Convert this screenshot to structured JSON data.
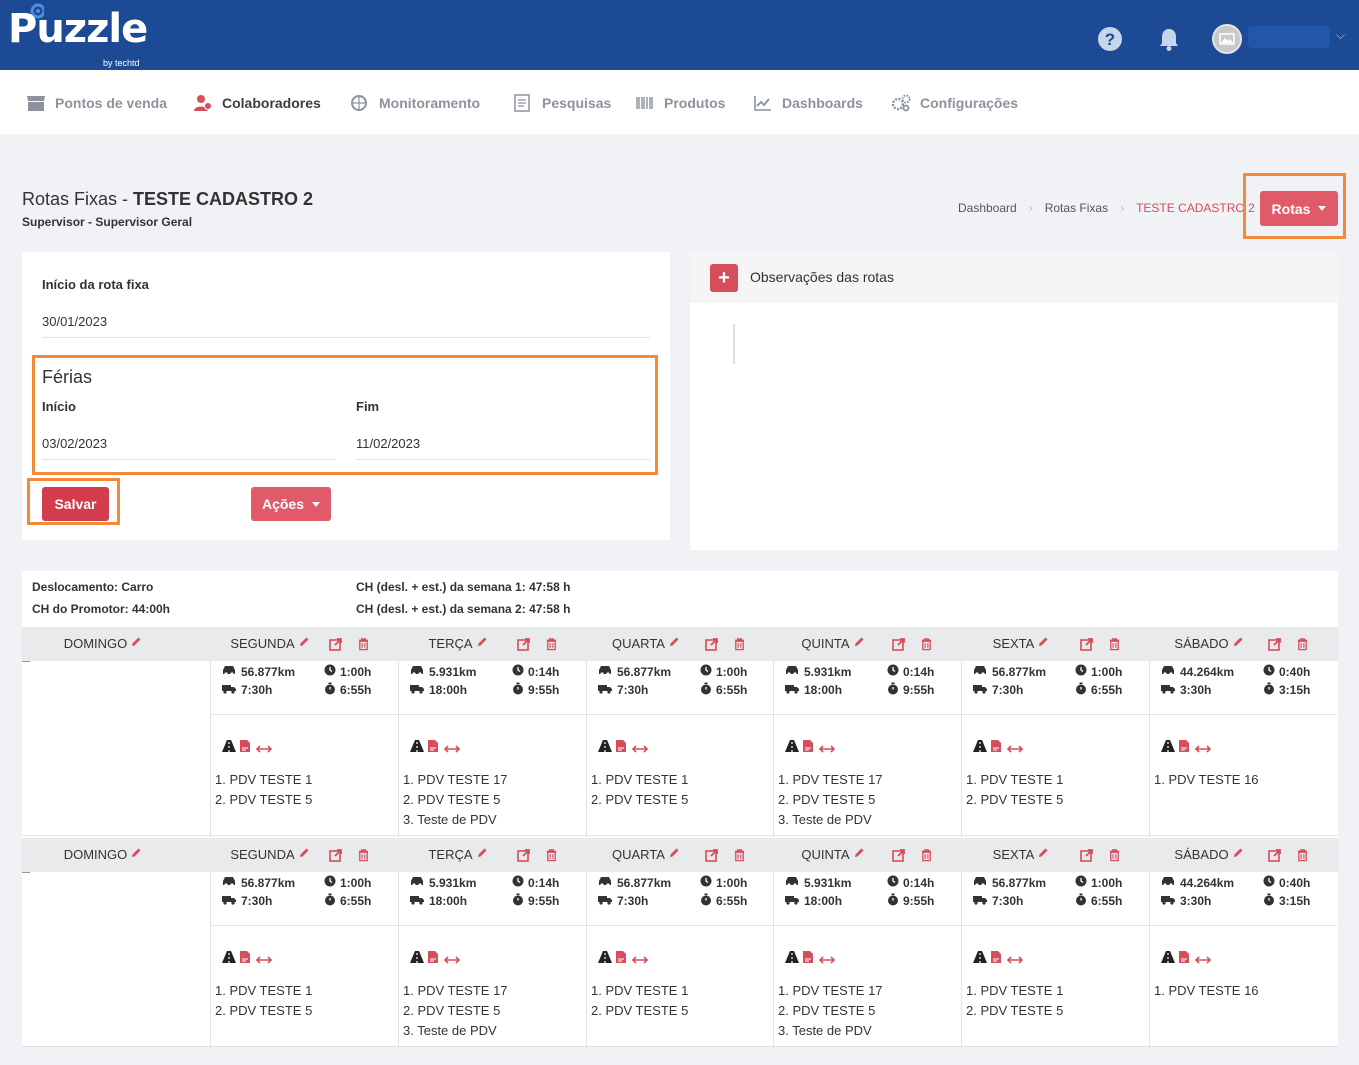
{
  "app": {
    "logo": "Puzzle",
    "logo_sub": "by techtd"
  },
  "nav": [
    {
      "label": "Pontos de venda",
      "icon": "store-icon"
    },
    {
      "label": "Colaboradores",
      "icon": "users-icon",
      "active": true
    },
    {
      "label": "Monitoramento",
      "icon": "globe-icon"
    },
    {
      "label": "Pesquisas",
      "icon": "survey-icon"
    },
    {
      "label": "Produtos",
      "icon": "barcode-icon"
    },
    {
      "label": "Dashboards",
      "icon": "chart-icon"
    },
    {
      "label": "Configurações",
      "icon": "gears-icon"
    }
  ],
  "header": {
    "title_prefix": "Rotas Fixas - ",
    "title_name": "TESTE CADASTRO 2",
    "subtitle": "Supervisor - Supervisor Geral",
    "breadcrumb": [
      "Dashboard",
      "Rotas Fixas",
      "TESTE CADASTRO 2"
    ],
    "rotas_button": "Rotas"
  },
  "form": {
    "inicio_rota_label": "Início da rota fixa",
    "inicio_rota_value": "30/01/2023",
    "ferias_title": "Férias",
    "inicio_label": "Início",
    "inicio_value": "03/02/2023",
    "fim_label": "Fim",
    "fim_value": "11/02/2023",
    "salvar": "Salvar",
    "acoes": "Ações"
  },
  "obs": {
    "title": "Observações das rotas"
  },
  "stats": {
    "deslocamento": "Deslocamento: Carro",
    "ch_promotor": "CH do Promotor: 44:00h",
    "semana1": "CH (desl. + est.) da semana 1: 47:58 h",
    "semana2": "CH (desl. + est.) da semana 2: 47:58 h"
  },
  "weeks": [
    {
      "days": [
        {
          "name": "DOMINGO"
        },
        {
          "name": "SEGUNDA",
          "km": "56.877km",
          "t1": "1:00h",
          "t2": "7:30h",
          "t3": "6:55h",
          "pdvs": [
            "1. PDV TESTE 1",
            "2. PDV TESTE 5"
          ]
        },
        {
          "name": "TERÇA",
          "km": "5.931km",
          "t1": "0:14h",
          "t2": "18:00h",
          "t3": "9:55h",
          "pdvs": [
            "1. PDV TESTE 17",
            "2. PDV TESTE 5",
            "3. Teste de PDV"
          ]
        },
        {
          "name": "QUARTA",
          "km": "56.877km",
          "t1": "1:00h",
          "t2": "7:30h",
          "t3": "6:55h",
          "pdvs": [
            "1. PDV TESTE 1",
            "2. PDV TESTE 5"
          ]
        },
        {
          "name": "QUINTA",
          "km": "5.931km",
          "t1": "0:14h",
          "t2": "18:00h",
          "t3": "9:55h",
          "pdvs": [
            "1. PDV TESTE 17",
            "2. PDV TESTE 5",
            "3. Teste de PDV"
          ]
        },
        {
          "name": "SEXTA",
          "km": "56.877km",
          "t1": "1:00h",
          "t2": "7:30h",
          "t3": "6:55h",
          "pdvs": [
            "1. PDV TESTE 1",
            "2. PDV TESTE 5"
          ]
        },
        {
          "name": "SÁBADO",
          "km": "44.264km",
          "t1": "0:40h",
          "t2": "3:30h",
          "t3": "3:15h",
          "pdvs": [
            "1. PDV TESTE 16"
          ]
        }
      ]
    },
    {
      "days": [
        {
          "name": "DOMINGO"
        },
        {
          "name": "SEGUNDA",
          "km": "56.877km",
          "t1": "1:00h",
          "t2": "7:30h",
          "t3": "6:55h",
          "pdvs": [
            "1. PDV TESTE 1",
            "2. PDV TESTE 5"
          ]
        },
        {
          "name": "TERÇA",
          "km": "5.931km",
          "t1": "0:14h",
          "t2": "18:00h",
          "t3": "9:55h",
          "pdvs": [
            "1. PDV TESTE 17",
            "2. PDV TESTE 5",
            "3. Teste de PDV"
          ]
        },
        {
          "name": "QUARTA",
          "km": "56.877km",
          "t1": "1:00h",
          "t2": "7:30h",
          "t3": "6:55h",
          "pdvs": [
            "1. PDV TESTE 1",
            "2. PDV TESTE 5"
          ]
        },
        {
          "name": "QUINTA",
          "km": "5.931km",
          "t1": "0:14h",
          "t2": "18:00h",
          "t3": "9:55h",
          "pdvs": [
            "1. PDV TESTE 17",
            "2. PDV TESTE 5",
            "3. Teste de PDV"
          ]
        },
        {
          "name": "SEXTA",
          "km": "56.877km",
          "t1": "1:00h",
          "t2": "7:30h",
          "t3": "6:55h",
          "pdvs": [
            "1. PDV TESTE 1",
            "2. PDV TESTE 5"
          ]
        },
        {
          "name": "SÁBADO",
          "km": "44.264km",
          "t1": "0:40h",
          "t2": "3:30h",
          "t3": "3:15h",
          "pdvs": [
            "1. PDV TESTE 16"
          ]
        }
      ]
    }
  ],
  "colors": {
    "brand": "#1c4a94",
    "accent": "#d64d5c",
    "highlight": "#f28a3a"
  }
}
